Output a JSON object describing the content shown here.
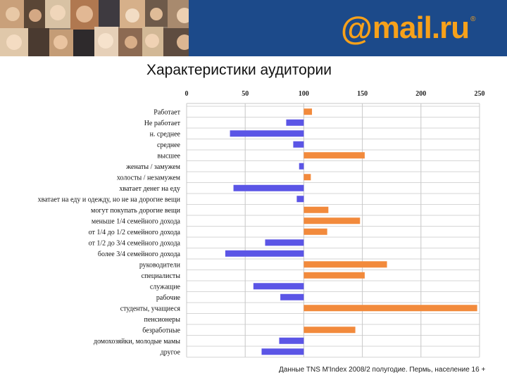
{
  "page": {
    "title": "Характеристики аудитории",
    "source_note": "Данные TNS M'Index 2008/2 полугодие. Пермь, население 16 +"
  },
  "logo": {
    "at": "@",
    "word": "mail.ru",
    "reg": "®"
  },
  "colors": {
    "banner": "#1c4a8a",
    "logo": "#f7a11a",
    "above_100": "#f28a3c",
    "below_100": "#5b55e6",
    "grid": "#c8c8c8"
  },
  "chart_data": {
    "type": "bar",
    "orientation": "horizontal",
    "baseline": 100,
    "xlim": [
      0,
      250
    ],
    "xticks": [
      0,
      50,
      100,
      150,
      200,
      250
    ],
    "grid": true,
    "categories": [
      "Работает",
      "Не работает",
      "н. среднее",
      "среднее",
      "высшее",
      "женаты / замужем",
      "холосты / незамужем",
      "хватает денег на еду",
      "хватает на еду и одежду, но не на дорогие вещи",
      "могут покупать дорогие вещи",
      "меньше 1/4 семейного дохода",
      "от 1/4 до 1/2 семейного дохода",
      "от 1/2 до 3/4 семейного дохода",
      "более 3/4 семейного дохода",
      "руководители",
      "специалисты",
      "служащие",
      "рабочие",
      "студенты, учащиеся",
      "пенсионеры",
      "безработные",
      "домохозяйки, молодые мамы",
      "другое"
    ],
    "values": [
      107,
      85,
      37,
      91,
      152,
      96,
      106,
      40,
      94,
      121,
      148,
      120,
      67,
      33,
      171,
      152,
      57,
      80,
      248,
      100,
      144,
      79,
      64
    ]
  }
}
